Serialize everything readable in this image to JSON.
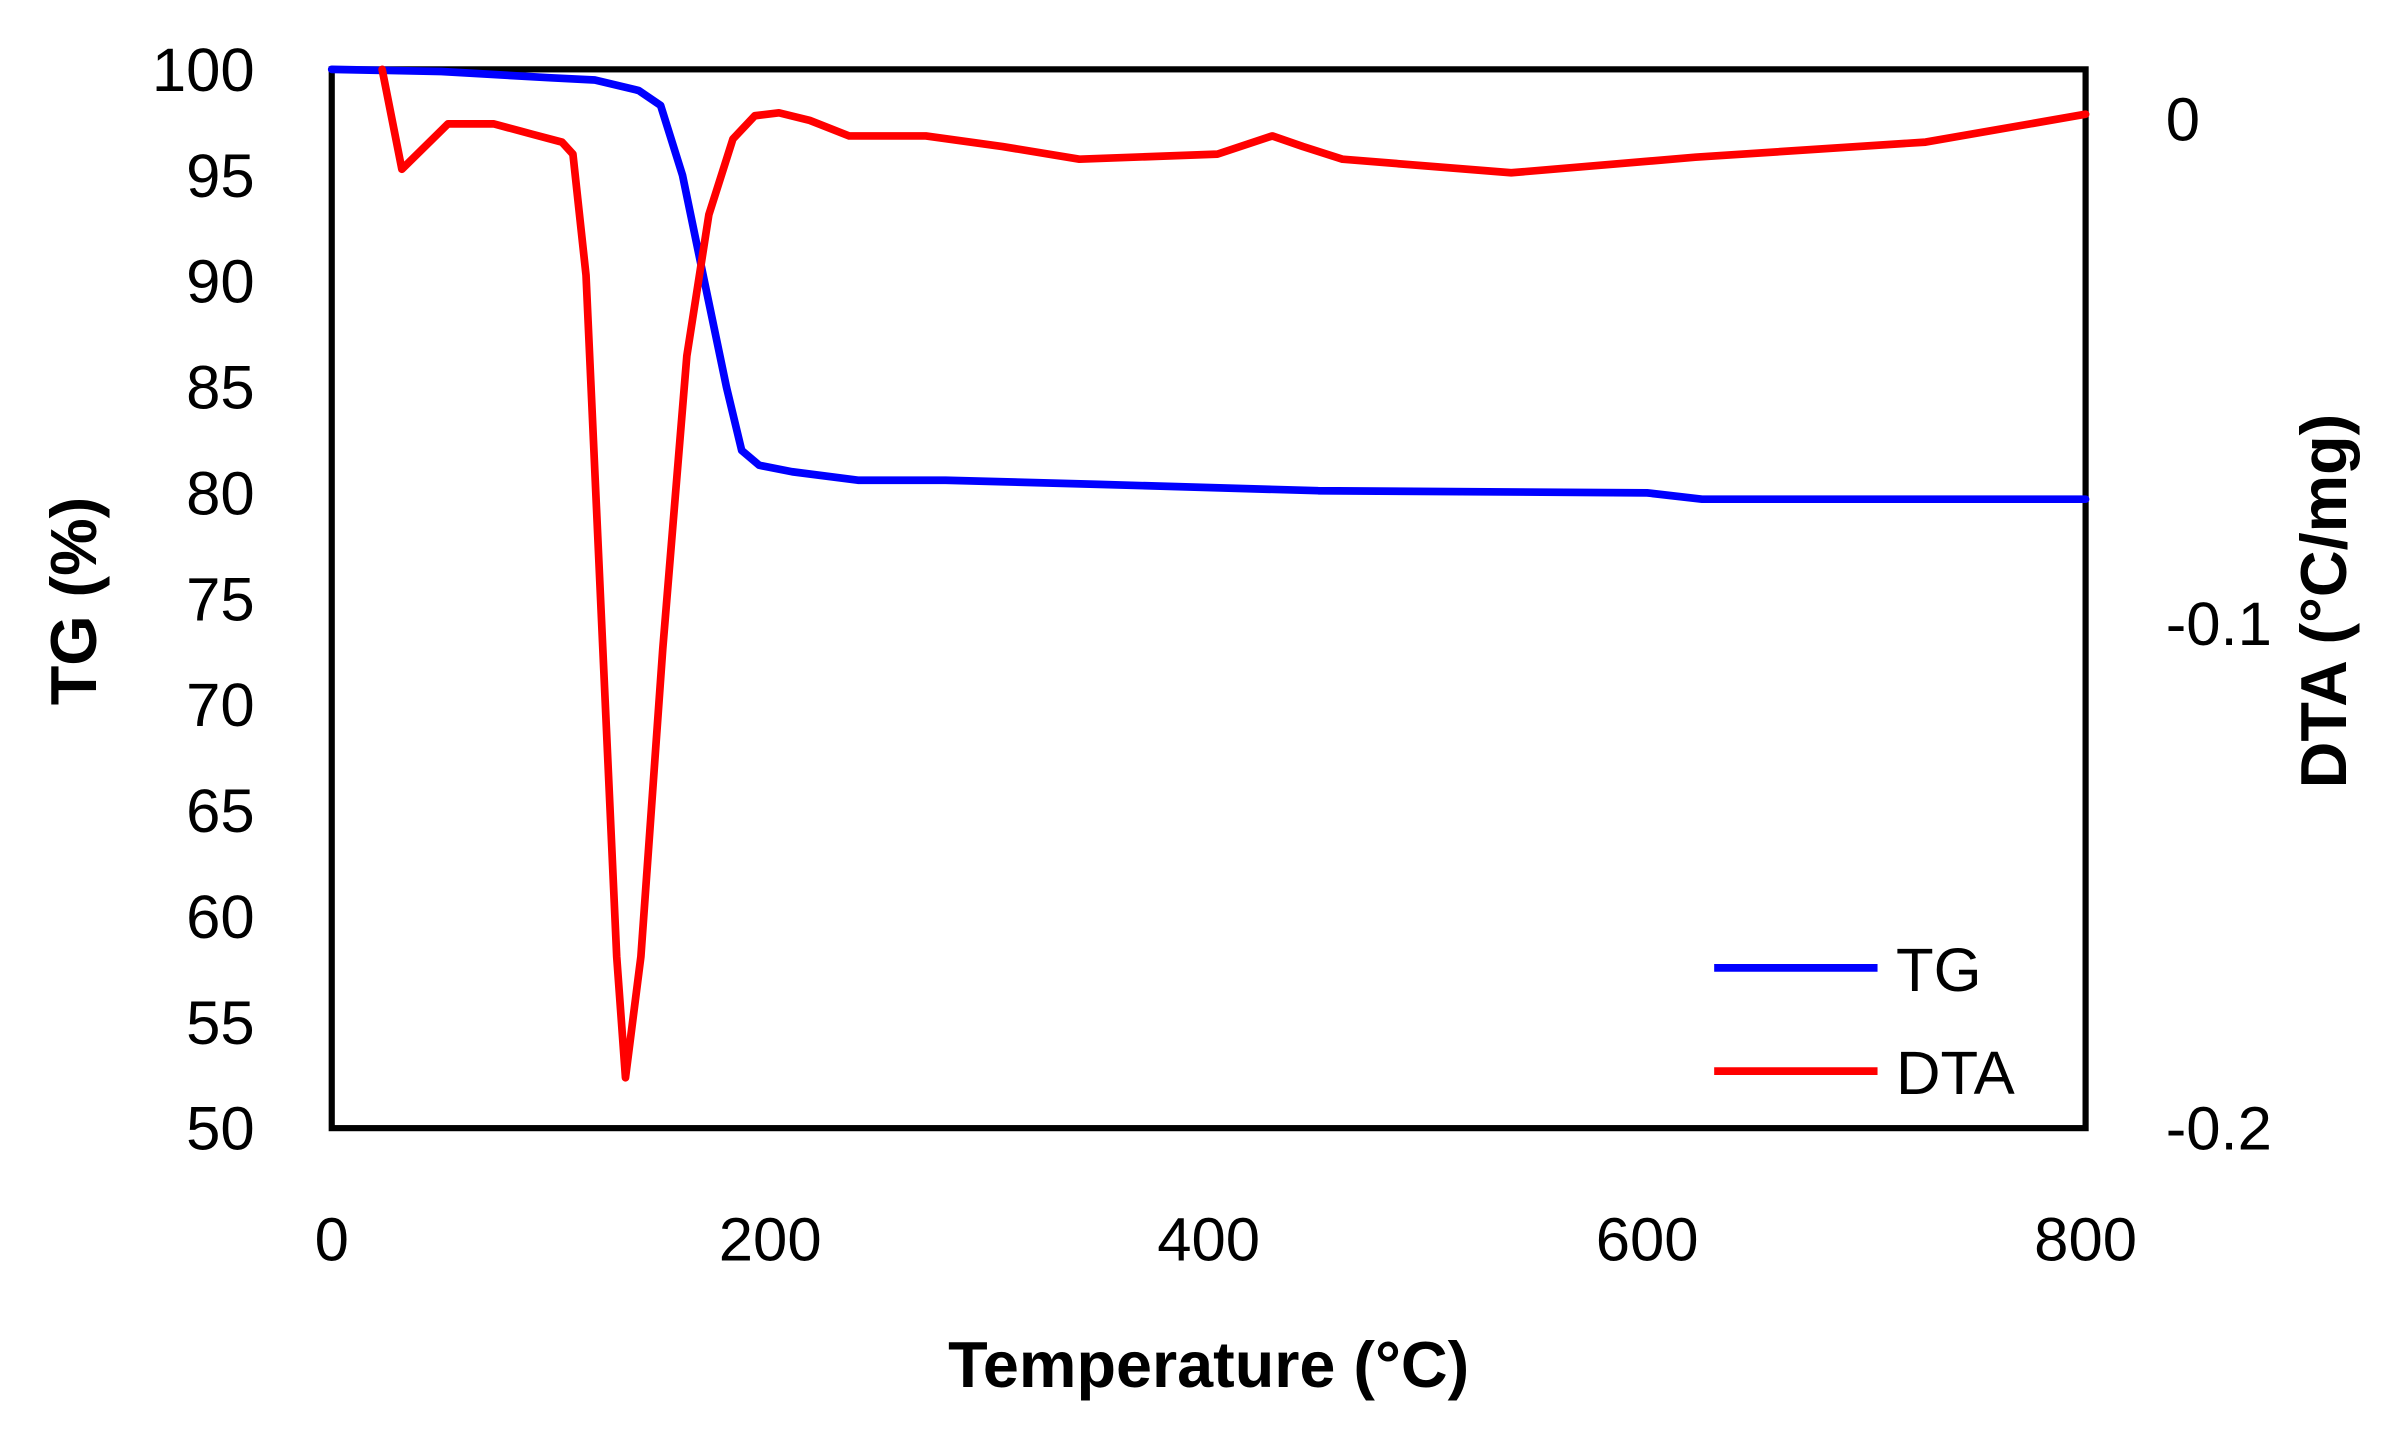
{
  "chart_data": {
    "type": "line",
    "xlabel": "Temperature (°C)",
    "ylabel": "TG (%)",
    "y2label": "DTA (°C/mg)",
    "xlim": [
      0,
      800
    ],
    "ylim": [
      50,
      100
    ],
    "y2lim": [
      -0.2,
      0.0098
    ],
    "grid": false,
    "legend_position": "bottom-right",
    "xticks": [
      "0",
      "200",
      "400",
      "600",
      "800"
    ],
    "xtick_values": [
      0,
      200,
      400,
      600,
      800
    ],
    "yticks": [
      "100",
      "95",
      "90",
      "85",
      "80",
      "75",
      "70",
      "65",
      "60",
      "55",
      "50"
    ],
    "ytick_values": [
      100,
      95,
      90,
      85,
      80,
      75,
      70,
      65,
      60,
      55,
      50
    ],
    "y2ticks": [
      "0",
      "-0.1",
      "-0.2"
    ],
    "y2tick_values": [
      0,
      -0.1,
      -0.2
    ],
    "series": [
      {
        "name": "TG",
        "axis": "left",
        "color": "#0000ff",
        "x": [
          0,
          50,
          100,
          120,
          140,
          150,
          160,
          170,
          180,
          187,
          195,
          210,
          240,
          280,
          350,
          450,
          600,
          625,
          800
        ],
        "y": [
          100,
          99.9,
          99.6,
          99.5,
          99,
          98.3,
          95,
          90,
          85,
          82,
          81.3,
          81,
          80.6,
          80.6,
          80.4,
          80.1,
          80,
          79.7,
          79.7
        ]
      },
      {
        "name": "DTA",
        "axis": "right",
        "color": "#ff0000",
        "x": [
          23,
          32,
          53,
          74,
          91,
          105,
          110,
          116,
          123,
          130,
          134,
          141,
          151,
          162,
          172,
          183,
          193,
          204,
          218,
          236,
          271,
          306,
          341,
          404,
          429,
          443,
          461,
          538,
          622,
          727,
          800
        ],
        "y": [
          0.0098,
          -0.01,
          -0.001,
          -0.001,
          -0.003,
          -0.0046,
          -0.007,
          -0.031,
          -0.099,
          -0.166,
          -0.19,
          -0.166,
          -0.105,
          -0.047,
          -0.019,
          -0.004,
          0.0006,
          0.0012,
          -0.0003,
          -0.0034,
          -0.0034,
          -0.0055,
          -0.008,
          -0.007,
          -0.0034,
          -0.0055,
          -0.008,
          -0.0107,
          -0.0076,
          -0.0046,
          0.0009
        ]
      }
    ]
  }
}
